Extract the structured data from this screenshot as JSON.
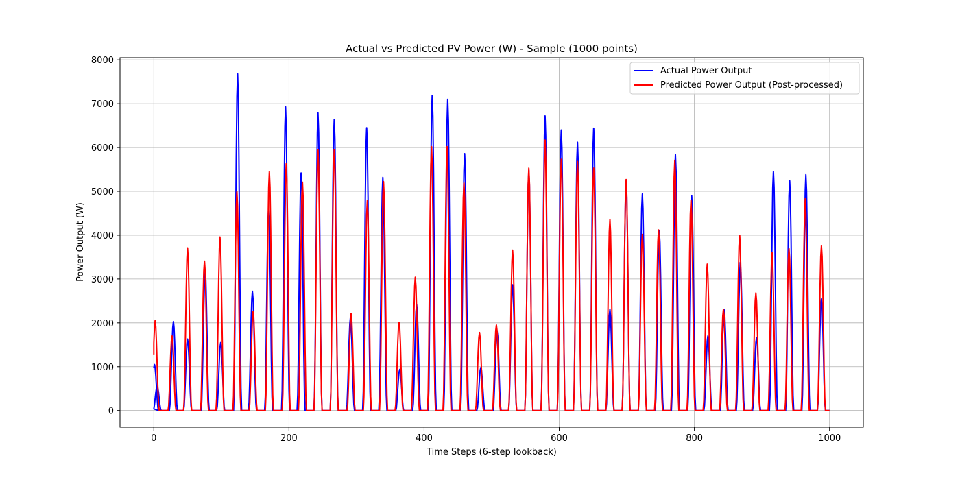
{
  "chart_data": {
    "type": "line",
    "title": "Actual vs Predicted PV Power (W) - Sample (1000 points)",
    "xlabel": "Time Steps (6-step lookback)",
    "ylabel": "Power Output (W)",
    "xlim": [
      -50,
      1050
    ],
    "ylim": [
      -380,
      8050
    ],
    "xticks": [
      0,
      200,
      400,
      600,
      800,
      1000
    ],
    "yticks": [
      0,
      1000,
      2000,
      3000,
      4000,
      5000,
      6000,
      7000,
      8000
    ],
    "grid": true,
    "legend_position": "top-right",
    "peak_period": 24,
    "series": [
      {
        "name": "Actual Power Output",
        "color": "#0000ff",
        "peaks": [
          {
            "x": 1,
            "y": 1050
          },
          {
            "x": 5,
            "y": 550
          },
          {
            "x": 29,
            "y": 2030
          },
          {
            "x": 50,
            "y": 1630
          },
          {
            "x": 76,
            "y": 3170
          },
          {
            "x": 99,
            "y": 1550
          },
          {
            "x": 124,
            "y": 7680
          },
          {
            "x": 146,
            "y": 2720
          },
          {
            "x": 170,
            "y": 4650
          },
          {
            "x": 195,
            "y": 6930
          },
          {
            "x": 218,
            "y": 5420
          },
          {
            "x": 243,
            "y": 6790
          },
          {
            "x": 267,
            "y": 6640
          },
          {
            "x": 291,
            "y": 2120
          },
          {
            "x": 315,
            "y": 6450
          },
          {
            "x": 339,
            "y": 5320
          },
          {
            "x": 364,
            "y": 940
          },
          {
            "x": 389,
            "y": 2420
          },
          {
            "x": 412,
            "y": 7190
          },
          {
            "x": 435,
            "y": 7100
          },
          {
            "x": 460,
            "y": 5860
          },
          {
            "x": 484,
            "y": 980
          },
          {
            "x": 508,
            "y": 1820
          },
          {
            "x": 531,
            "y": 2870
          },
          {
            "x": 555,
            "y": 5480
          },
          {
            "x": 579,
            "y": 6720
          },
          {
            "x": 603,
            "y": 6400
          },
          {
            "x": 627,
            "y": 6120
          },
          {
            "x": 651,
            "y": 6440
          },
          {
            "x": 675,
            "y": 2310
          },
          {
            "x": 699,
            "y": 5210
          },
          {
            "x": 723,
            "y": 4940
          },
          {
            "x": 748,
            "y": 4110
          },
          {
            "x": 772,
            "y": 5840
          },
          {
            "x": 796,
            "y": 4900
          },
          {
            "x": 820,
            "y": 1700
          },
          {
            "x": 844,
            "y": 2300
          },
          {
            "x": 868,
            "y": 3380
          },
          {
            "x": 892,
            "y": 1660
          },
          {
            "x": 917,
            "y": 5450
          },
          {
            "x": 941,
            "y": 5240
          },
          {
            "x": 965,
            "y": 5380
          },
          {
            "x": 988,
            "y": 2550
          }
        ]
      },
      {
        "name": "Predicted Power Output (Post-processed)",
        "color": "#ff0000",
        "peaks": [
          {
            "x": 2,
            "y": 2050
          },
          {
            "x": 27,
            "y": 1700
          },
          {
            "x": 50,
            "y": 3710
          },
          {
            "x": 75,
            "y": 3410
          },
          {
            "x": 98,
            "y": 3960
          },
          {
            "x": 123,
            "y": 4990
          },
          {
            "x": 147,
            "y": 2260
          },
          {
            "x": 171,
            "y": 5450
          },
          {
            "x": 196,
            "y": 5630
          },
          {
            "x": 220,
            "y": 5210
          },
          {
            "x": 243,
            "y": 5950
          },
          {
            "x": 267,
            "y": 5950
          },
          {
            "x": 292,
            "y": 2210
          },
          {
            "x": 316,
            "y": 4790
          },
          {
            "x": 340,
            "y": 5220
          },
          {
            "x": 363,
            "y": 2010
          },
          {
            "x": 387,
            "y": 3040
          },
          {
            "x": 411,
            "y": 6020
          },
          {
            "x": 434,
            "y": 6020
          },
          {
            "x": 459,
            "y": 5190
          },
          {
            "x": 482,
            "y": 1780
          },
          {
            "x": 507,
            "y": 1950
          },
          {
            "x": 531,
            "y": 3660
          },
          {
            "x": 555,
            "y": 5530
          },
          {
            "x": 579,
            "y": 6170
          },
          {
            "x": 603,
            "y": 5730
          },
          {
            "x": 627,
            "y": 5680
          },
          {
            "x": 651,
            "y": 5530
          },
          {
            "x": 675,
            "y": 4360
          },
          {
            "x": 699,
            "y": 5270
          },
          {
            "x": 723,
            "y": 4020
          },
          {
            "x": 747,
            "y": 4120
          },
          {
            "x": 771,
            "y": 5710
          },
          {
            "x": 795,
            "y": 4800
          },
          {
            "x": 819,
            "y": 3340
          },
          {
            "x": 843,
            "y": 2310
          },
          {
            "x": 867,
            "y": 4000
          },
          {
            "x": 891,
            "y": 2680
          },
          {
            "x": 915,
            "y": 3600
          },
          {
            "x": 940,
            "y": 3690
          },
          {
            "x": 964,
            "y": 4830
          },
          {
            "x": 988,
            "y": 3760
          }
        ]
      }
    ]
  }
}
